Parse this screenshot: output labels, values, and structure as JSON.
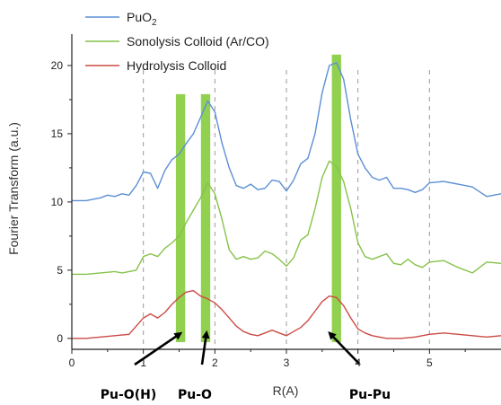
{
  "chart_data": {
    "type": "line",
    "xlabel": "R(A)",
    "ylabel": "Fourier Transform (a.u.)",
    "xlim": [
      0,
      6
    ],
    "ylim": [
      -0.8,
      22.3
    ],
    "x_ticks": [
      0,
      1,
      2,
      3,
      4,
      5
    ],
    "y_ticks": [
      0,
      5,
      10,
      15,
      20
    ],
    "grid": false,
    "reference_lines_x": [
      1,
      2,
      3,
      4,
      5
    ],
    "legend_position": "top-left",
    "legend": [
      {
        "label_main": "PuO",
        "label_sub": "2",
        "color": "#5b8fd6"
      },
      {
        "label_main": "Sonolysis Colloid (Ar/CO)",
        "label_sub": "",
        "color": "#86c24a"
      },
      {
        "label_main": "Hydrolysis Colloid",
        "label_sub": "",
        "color": "#cc4b45"
      }
    ],
    "series": [
      {
        "color": "#5b8fd6",
        "points": [
          [
            0,
            10.1
          ],
          [
            0.2,
            10.1
          ],
          [
            0.4,
            10.3
          ],
          [
            0.5,
            10.5
          ],
          [
            0.6,
            10.4
          ],
          [
            0.7,
            10.6
          ],
          [
            0.8,
            10.5
          ],
          [
            0.9,
            11.2
          ],
          [
            1.0,
            12.2
          ],
          [
            1.1,
            12.1
          ],
          [
            1.2,
            11.0
          ],
          [
            1.3,
            12.3
          ],
          [
            1.4,
            13.1
          ],
          [
            1.5,
            13.5
          ],
          [
            1.6,
            14.3
          ],
          [
            1.7,
            15.0
          ],
          [
            1.8,
            16.2
          ],
          [
            1.9,
            17.4
          ],
          [
            2.0,
            16.6
          ],
          [
            2.1,
            14.3
          ],
          [
            2.2,
            12.5
          ],
          [
            2.3,
            11.2
          ],
          [
            2.4,
            11.0
          ],
          [
            2.5,
            11.3
          ],
          [
            2.6,
            10.9
          ],
          [
            2.7,
            11.0
          ],
          [
            2.8,
            11.6
          ],
          [
            2.9,
            11.5
          ],
          [
            3.0,
            10.8
          ],
          [
            3.1,
            11.6
          ],
          [
            3.2,
            12.8
          ],
          [
            3.3,
            13.2
          ],
          [
            3.4,
            15.0
          ],
          [
            3.5,
            18.0
          ],
          [
            3.6,
            20.0
          ],
          [
            3.7,
            20.2
          ],
          [
            3.8,
            19.0
          ],
          [
            3.9,
            16.0
          ],
          [
            4.0,
            13.5
          ],
          [
            4.1,
            12.5
          ],
          [
            4.2,
            11.8
          ],
          [
            4.3,
            11.6
          ],
          [
            4.4,
            11.8
          ],
          [
            4.5,
            11.0
          ],
          [
            4.6,
            11.0
          ],
          [
            4.7,
            10.9
          ],
          [
            4.8,
            10.7
          ],
          [
            4.9,
            10.9
          ],
          [
            5.0,
            11.4
          ],
          [
            5.2,
            11.5
          ],
          [
            5.4,
            11.3
          ],
          [
            5.6,
            11.1
          ],
          [
            5.8,
            10.4
          ],
          [
            6.0,
            10.6
          ]
        ]
      },
      {
        "color": "#86c24a",
        "points": [
          [
            0,
            4.7
          ],
          [
            0.2,
            4.7
          ],
          [
            0.4,
            4.8
          ],
          [
            0.6,
            4.9
          ],
          [
            0.7,
            4.8
          ],
          [
            0.8,
            4.9
          ],
          [
            0.9,
            5.0
          ],
          [
            1.0,
            6.0
          ],
          [
            1.1,
            6.2
          ],
          [
            1.2,
            6.0
          ],
          [
            1.3,
            6.6
          ],
          [
            1.4,
            7.0
          ],
          [
            1.5,
            7.5
          ],
          [
            1.6,
            8.5
          ],
          [
            1.7,
            9.4
          ],
          [
            1.8,
            10.3
          ],
          [
            1.9,
            11.4
          ],
          [
            2.0,
            10.6
          ],
          [
            2.1,
            8.7
          ],
          [
            2.2,
            6.5
          ],
          [
            2.3,
            5.8
          ],
          [
            2.4,
            6.0
          ],
          [
            2.5,
            5.8
          ],
          [
            2.6,
            5.9
          ],
          [
            2.7,
            6.4
          ],
          [
            2.8,
            6.2
          ],
          [
            2.9,
            5.8
          ],
          [
            3.0,
            5.3
          ],
          [
            3.1,
            5.9
          ],
          [
            3.2,
            7.2
          ],
          [
            3.3,
            7.6
          ],
          [
            3.4,
            9.5
          ],
          [
            3.5,
            11.8
          ],
          [
            3.6,
            13.0
          ],
          [
            3.7,
            12.6
          ],
          [
            3.8,
            11.5
          ],
          [
            3.9,
            9.5
          ],
          [
            4.0,
            7.0
          ],
          [
            4.1,
            6.0
          ],
          [
            4.2,
            5.8
          ],
          [
            4.3,
            6.0
          ],
          [
            4.4,
            6.2
          ],
          [
            4.5,
            5.5
          ],
          [
            4.6,
            5.4
          ],
          [
            4.7,
            5.8
          ],
          [
            4.8,
            5.4
          ],
          [
            4.9,
            5.2
          ],
          [
            5.0,
            5.6
          ],
          [
            5.2,
            5.7
          ],
          [
            5.4,
            5.2
          ],
          [
            5.6,
            4.8
          ],
          [
            5.8,
            5.6
          ],
          [
            6.0,
            5.5
          ]
        ]
      },
      {
        "color": "#cc4b45",
        "points": [
          [
            0,
            0.0
          ],
          [
            0.2,
            0.0
          ],
          [
            0.4,
            0.1
          ],
          [
            0.6,
            0.2
          ],
          [
            0.8,
            0.3
          ],
          [
            0.9,
            0.9
          ],
          [
            1.0,
            1.5
          ],
          [
            1.1,
            1.8
          ],
          [
            1.2,
            1.5
          ],
          [
            1.3,
            1.9
          ],
          [
            1.4,
            2.5
          ],
          [
            1.5,
            3.0
          ],
          [
            1.6,
            3.4
          ],
          [
            1.7,
            3.5
          ],
          [
            1.8,
            3.1
          ],
          [
            1.9,
            2.9
          ],
          [
            2.0,
            2.6
          ],
          [
            2.1,
            2.1
          ],
          [
            2.2,
            1.5
          ],
          [
            2.3,
            0.9
          ],
          [
            2.4,
            0.5
          ],
          [
            2.5,
            0.3
          ],
          [
            2.6,
            0.2
          ],
          [
            2.7,
            0.4
          ],
          [
            2.8,
            0.6
          ],
          [
            2.9,
            0.4
          ],
          [
            3.0,
            0.2
          ],
          [
            3.1,
            0.5
          ],
          [
            3.2,
            0.8
          ],
          [
            3.3,
            1.3
          ],
          [
            3.4,
            2.0
          ],
          [
            3.5,
            2.7
          ],
          [
            3.6,
            3.1
          ],
          [
            3.7,
            3.0
          ],
          [
            3.8,
            2.4
          ],
          [
            3.9,
            1.5
          ],
          [
            4.0,
            0.7
          ],
          [
            4.1,
            0.4
          ],
          [
            4.2,
            0.2
          ],
          [
            4.4,
            0.0
          ],
          [
            4.6,
            0.0
          ],
          [
            4.8,
            0.1
          ],
          [
            5.0,
            0.3
          ],
          [
            5.2,
            0.4
          ],
          [
            5.4,
            0.3
          ],
          [
            5.6,
            0.2
          ],
          [
            5.8,
            0.1
          ],
          [
            6.0,
            0.2
          ]
        ]
      }
    ],
    "highlight_bands": [
      {
        "x": 1.52,
        "width": 0.13,
        "y_top": 17.9,
        "color": "#92d050"
      },
      {
        "x": 1.87,
        "width": 0.13,
        "y_top": 17.9,
        "color": "#92d050"
      },
      {
        "x": 3.7,
        "width": 0.13,
        "y_top": 20.8,
        "color": "#92d050"
      }
    ],
    "annotations": [
      {
        "text": "Pu-O(H)",
        "tip": [
          1.5,
          0.3
        ]
      },
      {
        "text": "Pu-O",
        "tip": [
          1.88,
          0.3
        ]
      },
      {
        "text": "Pu-Pu",
        "tip": [
          3.62,
          0.3
        ]
      }
    ]
  }
}
